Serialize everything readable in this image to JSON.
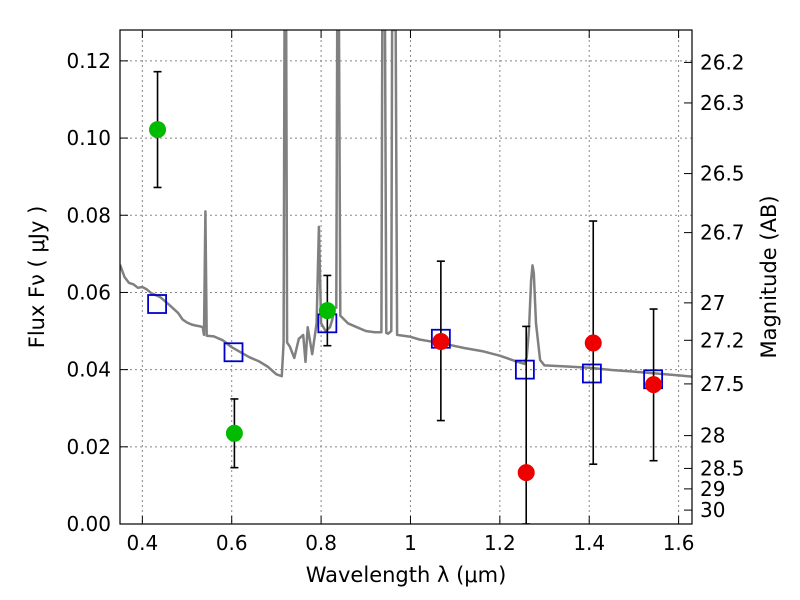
{
  "chart_data": {
    "type": "scatter",
    "title": "",
    "xlabel": "Wavelength  λ (μm)",
    "ylabel": "Flux  Fν  ( μJy )",
    "y2label": "Magnitude (AB)",
    "xlim": [
      0.35,
      1.63
    ],
    "ylim": [
      0.0,
      0.128
    ],
    "grid": true,
    "x_ticks": [
      0.4,
      0.6,
      0.8,
      1.0,
      1.2,
      1.4,
      1.6
    ],
    "x_tick_labels": [
      "0.4",
      "0.6",
      "0.8",
      "1",
      "1.2",
      "1.4",
      "1.6"
    ],
    "y_ticks": [
      0.0,
      0.02,
      0.04,
      0.06,
      0.08,
      0.1,
      0.12
    ],
    "y_tick_labels": [
      "0.00",
      "0.02",
      "0.04",
      "0.06",
      "0.08",
      "0.10",
      "0.12"
    ],
    "mag_ticks": [
      {
        "label": "26.2",
        "flux": 0.1196
      },
      {
        "label": "26.3",
        "flux": 0.1091
      },
      {
        "label": "26.5",
        "flux": 0.0908
      },
      {
        "label": "26.7",
        "flux": 0.0755
      },
      {
        "label": "27",
        "flux": 0.0573
      },
      {
        "label": "27.2",
        "flux": 0.0476
      },
      {
        "label": "27.5",
        "flux": 0.0363
      },
      {
        "label": "28",
        "flux": 0.0229
      },
      {
        "label": "28.5",
        "flux": 0.0144
      },
      {
        "label": "29",
        "flux": 0.0091
      },
      {
        "label": "30",
        "flux": 0.0036
      }
    ],
    "series": [
      {
        "kind": "spectrum",
        "color": "#808080",
        "points": [
          [
            0.35,
            0.0672
          ],
          [
            0.36,
            0.064
          ],
          [
            0.37,
            0.0625
          ],
          [
            0.38,
            0.0621
          ],
          [
            0.39,
            0.0612
          ],
          [
            0.4,
            0.0614
          ],
          [
            0.41,
            0.0608
          ],
          [
            0.42,
            0.0598
          ],
          [
            0.44,
            0.0588
          ],
          [
            0.46,
            0.0568
          ],
          [
            0.48,
            0.0547
          ],
          [
            0.49,
            0.053
          ],
          [
            0.5,
            0.0522
          ],
          [
            0.51,
            0.0517
          ],
          [
            0.52,
            0.0514
          ],
          [
            0.53,
            0.0512
          ],
          [
            0.535,
            0.051
          ],
          [
            0.538,
            0.049
          ],
          [
            0.541,
            0.081
          ],
          [
            0.544,
            0.0488
          ],
          [
            0.56,
            0.0486
          ],
          [
            0.58,
            0.0476
          ],
          [
            0.6,
            0.0458
          ],
          [
            0.62,
            0.0445
          ],
          [
            0.64,
            0.0432
          ],
          [
            0.66,
            0.0422
          ],
          [
            0.68,
            0.0408
          ],
          [
            0.7,
            0.0388
          ],
          [
            0.712,
            0.0383
          ],
          [
            0.716,
            0.047
          ],
          [
            0.718,
            0.128
          ],
          [
            0.722,
            0.128
          ],
          [
            0.724,
            0.047
          ],
          [
            0.73,
            0.046
          ],
          [
            0.74,
            0.043
          ],
          [
            0.75,
            0.048
          ],
          [
            0.76,
            0.049
          ],
          [
            0.765,
            0.042
          ],
          [
            0.77,
            0.051
          ],
          [
            0.78,
            0.044
          ],
          [
            0.79,
            0.052
          ],
          [
            0.795,
            0.077
          ],
          [
            0.8,
            0.052
          ],
          [
            0.81,
            0.05
          ],
          [
            0.82,
            0.051
          ],
          [
            0.825,
            0.053
          ],
          [
            0.83,
            0.056
          ],
          [
            0.834,
            0.056
          ],
          [
            0.836,
            0.128
          ],
          [
            0.84,
            0.128
          ],
          [
            0.843,
            0.054
          ],
          [
            0.86,
            0.052
          ],
          [
            0.88,
            0.051
          ],
          [
            0.9,
            0.05
          ],
          [
            0.92,
            0.0497
          ],
          [
            0.935,
            0.0497
          ],
          [
            0.937,
            0.128
          ],
          [
            0.943,
            0.128
          ],
          [
            0.946,
            0.0495
          ],
          [
            0.95,
            0.0493
          ],
          [
            0.957,
            0.05
          ],
          [
            0.959,
            0.128
          ],
          [
            0.967,
            0.128
          ],
          [
            0.97,
            0.049
          ],
          [
            1.0,
            0.0485
          ],
          [
            1.02,
            0.0478
          ],
          [
            1.05,
            0.0472
          ],
          [
            1.08,
            0.0466
          ],
          [
            1.12,
            0.0456
          ],
          [
            1.16,
            0.0448
          ],
          [
            1.2,
            0.0436
          ],
          [
            1.22,
            0.0428
          ],
          [
            1.24,
            0.042
          ],
          [
            1.255,
            0.0415
          ],
          [
            1.26,
            0.0432
          ],
          [
            1.265,
            0.05
          ],
          [
            1.27,
            0.063
          ],
          [
            1.273,
            0.067
          ],
          [
            1.276,
            0.065
          ],
          [
            1.281,
            0.052
          ],
          [
            1.29,
            0.0425
          ],
          [
            1.3,
            0.0411
          ],
          [
            1.35,
            0.0408
          ],
          [
            1.4,
            0.0405
          ],
          [
            1.45,
            0.0399
          ],
          [
            1.5,
            0.0395
          ],
          [
            1.55,
            0.039
          ],
          [
            1.6,
            0.0385
          ],
          [
            1.63,
            0.0382
          ]
        ]
      },
      {
        "kind": "model-squares",
        "color": "#0000cc",
        "points": [
          [
            0.433,
            0.057
          ],
          [
            0.604,
            0.0445
          ],
          [
            0.814,
            0.052
          ],
          [
            1.068,
            0.048
          ],
          [
            1.256,
            0.04
          ],
          [
            1.406,
            0.039
          ],
          [
            1.543,
            0.0375
          ]
        ]
      },
      {
        "kind": "detections-green",
        "color": "#00bb00",
        "points": [
          {
            "x": 0.434,
            "y": 0.1022,
            "ylo": 0.0872,
            "yhi": 0.1172
          },
          {
            "x": 0.606,
            "y": 0.0235,
            "ylo": 0.0146,
            "yhi": 0.0324
          },
          {
            "x": 0.814,
            "y": 0.0553,
            "ylo": 0.0462,
            "yhi": 0.0644
          }
        ]
      },
      {
        "kind": "detections-red",
        "color": "#ee0000",
        "points": [
          {
            "x": 1.068,
            "y": 0.0473,
            "ylo": 0.0268,
            "yhi": 0.0681
          },
          {
            "x": 1.259,
            "y": 0.0133,
            "ylo": 0.0,
            "yhi": 0.0512
          },
          {
            "x": 1.409,
            "y": 0.0469,
            "ylo": 0.0155,
            "yhi": 0.0785
          },
          {
            "x": 1.544,
            "y": 0.0361,
            "ylo": 0.0164,
            "yhi": 0.0557
          }
        ]
      }
    ]
  }
}
